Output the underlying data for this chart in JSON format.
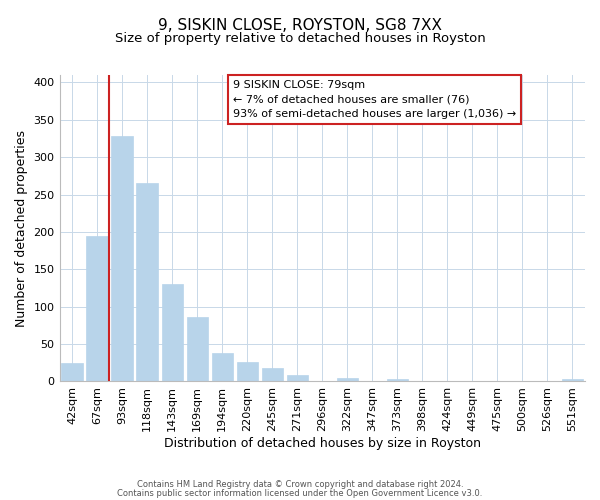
{
  "title": "9, SISKIN CLOSE, ROYSTON, SG8 7XX",
  "subtitle": "Size of property relative to detached houses in Royston",
  "xlabel": "Distribution of detached houses by size in Royston",
  "ylabel": "Number of detached properties",
  "categories": [
    "42sqm",
    "67sqm",
    "93sqm",
    "118sqm",
    "143sqm",
    "169sqm",
    "194sqm",
    "220sqm",
    "245sqm",
    "271sqm",
    "296sqm",
    "322sqm",
    "347sqm",
    "373sqm",
    "398sqm",
    "424sqm",
    "449sqm",
    "475sqm",
    "500sqm",
    "526sqm",
    "551sqm"
  ],
  "values": [
    25,
    195,
    328,
    266,
    130,
    86,
    38,
    26,
    18,
    8,
    0,
    5,
    0,
    3,
    0,
    0,
    0,
    0,
    0,
    0,
    3
  ],
  "bar_color": "#b8d4ea",
  "highlight_line_color": "#cc2222",
  "annotation_text": "9 SISKIN CLOSE: 79sqm\n← 7% of detached houses are smaller (76)\n93% of semi-detached houses are larger (1,036) →",
  "annotation_box_color": "#ffffff",
  "annotation_box_edgecolor": "#cc2222",
  "ylim": [
    0,
    410
  ],
  "yticks": [
    0,
    50,
    100,
    150,
    200,
    250,
    300,
    350,
    400
  ],
  "footer1": "Contains HM Land Registry data © Crown copyright and database right 2024.",
  "footer2": "Contains public sector information licensed under the Open Government Licence v3.0.",
  "bg_color": "#ffffff",
  "grid_color": "#c8d8e8",
  "title_fontsize": 11,
  "subtitle_fontsize": 9.5,
  "xlabel_fontsize": 9,
  "ylabel_fontsize": 9,
  "annotation_fontsize": 8,
  "tick_fontsize": 8,
  "footer_fontsize": 6,
  "bar_width": 0.85,
  "line_x_index": 1.46
}
